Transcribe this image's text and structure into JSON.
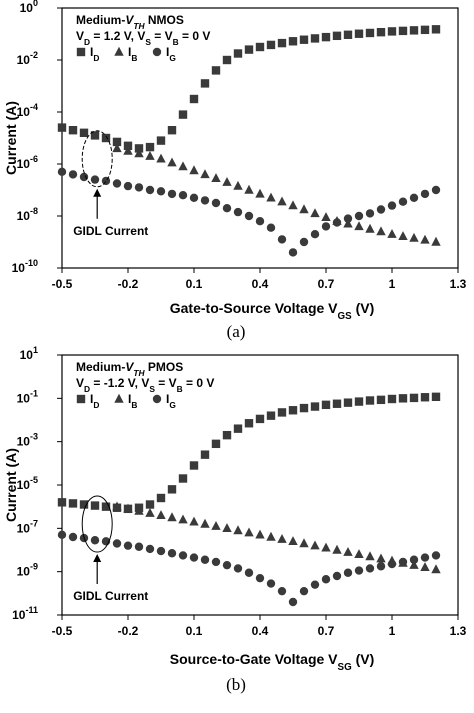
{
  "chart_data": [
    {
      "type": "scatter",
      "caption": "(a)",
      "title_parts": [
        "Medium-",
        "V",
        "TH",
        " NMOS"
      ],
      "conditions_parts": [
        "V",
        "D",
        " = 1.2 V, V",
        "S",
        " = V",
        "B",
        " = 0 V"
      ],
      "xlabel_parts": [
        "Gate-to-Source Voltage V",
        "GS",
        " (V)"
      ],
      "ylabel": "Current (A)",
      "x_ticks": [
        "-0.5",
        "-0.2",
        "0.1",
        "0.4",
        "0.7",
        "1",
        "1.3"
      ],
      "x_tick_values": [
        -0.5,
        -0.2,
        0.1,
        0.4,
        0.7,
        1.0,
        1.3
      ],
      "y_ticks": [
        {
          "base": "10",
          "exp": "0",
          "value": 0
        },
        {
          "base": "10",
          "exp": "-2",
          "value": -2
        },
        {
          "base": "10",
          "exp": "-4",
          "value": -4
        },
        {
          "base": "10",
          "exp": "-6",
          "value": -6
        },
        {
          "base": "10",
          "exp": "-8",
          "value": -8
        },
        {
          "base": "10",
          "exp": "-10",
          "value": -10
        }
      ],
      "xlim": [
        -0.5,
        1.3
      ],
      "ylim_log10": [
        -10,
        0
      ],
      "y_scale": "log",
      "legend_position": "top-left",
      "annotation": "GIDL Current",
      "annotation_target": {
        "x": -0.34,
        "y_log10": -5.8
      },
      "series": [
        {
          "name": "I",
          "sub": "D",
          "marker": "square",
          "x": [
            -0.5,
            -0.45,
            -0.4,
            -0.35,
            -0.3,
            -0.25,
            -0.2,
            -0.15,
            -0.1,
            -0.05,
            0.0,
            0.05,
            0.1,
            0.15,
            0.2,
            0.25,
            0.3,
            0.35,
            0.4,
            0.45,
            0.5,
            0.55,
            0.6,
            0.65,
            0.7,
            0.75,
            0.8,
            0.85,
            0.9,
            0.95,
            1.0,
            1.05,
            1.1,
            1.15,
            1.2
          ],
          "y_log10": [
            -4.6,
            -4.7,
            -4.8,
            -4.9,
            -5.0,
            -5.15,
            -5.3,
            -5.4,
            -5.35,
            -5.1,
            -4.7,
            -4.1,
            -3.5,
            -2.9,
            -2.4,
            -2.0,
            -1.75,
            -1.6,
            -1.5,
            -1.42,
            -1.35,
            -1.28,
            -1.22,
            -1.17,
            -1.12,
            -1.07,
            -1.03,
            -0.99,
            -0.96,
            -0.93,
            -0.9,
            -0.88,
            -0.86,
            -0.84,
            -0.82
          ]
        },
        {
          "name": "I",
          "sub": "B",
          "marker": "triangle",
          "x": [
            -0.25,
            -0.2,
            -0.15,
            -0.1,
            -0.05,
            0.0,
            0.05,
            0.1,
            0.15,
            0.2,
            0.25,
            0.3,
            0.35,
            0.4,
            0.45,
            0.5,
            0.55,
            0.6,
            0.65,
            0.7,
            0.75,
            0.8,
            0.85,
            0.9,
            0.95,
            1.0,
            1.05,
            1.1,
            1.15,
            1.2
          ],
          "y_log10": [
            -5.4,
            -5.5,
            -5.6,
            -5.7,
            -5.8,
            -5.95,
            -6.1,
            -6.25,
            -6.4,
            -6.55,
            -6.7,
            -6.85,
            -7.0,
            -7.15,
            -7.3,
            -7.45,
            -7.6,
            -7.75,
            -7.9,
            -8.05,
            -8.2,
            -8.3,
            -8.4,
            -8.5,
            -8.6,
            -8.7,
            -8.78,
            -8.85,
            -8.92,
            -9.0
          ]
        },
        {
          "name": "I",
          "sub": "G",
          "marker": "circle",
          "x": [
            -0.5,
            -0.45,
            -0.4,
            -0.35,
            -0.3,
            -0.25,
            -0.2,
            -0.15,
            -0.1,
            -0.05,
            0.0,
            0.05,
            0.1,
            0.15,
            0.2,
            0.25,
            0.3,
            0.35,
            0.4,
            0.45,
            0.5,
            0.55,
            0.6,
            0.65,
            0.7,
            0.75,
            0.8,
            0.85,
            0.9,
            0.95,
            1.0,
            1.05,
            1.1,
            1.15,
            1.2
          ],
          "y_log10": [
            -6.3,
            -6.4,
            -6.5,
            -6.6,
            -6.65,
            -6.75,
            -6.85,
            -6.9,
            -7.0,
            -7.05,
            -7.15,
            -7.2,
            -7.3,
            -7.4,
            -7.5,
            -7.7,
            -7.85,
            -8.0,
            -8.2,
            -8.45,
            -8.9,
            -9.4,
            -9.0,
            -8.7,
            -8.4,
            -8.25,
            -8.1,
            -8.0,
            -7.9,
            -7.75,
            -7.6,
            -7.45,
            -7.3,
            -7.15,
            -7.0
          ]
        }
      ]
    },
    {
      "type": "scatter",
      "caption": "(b)",
      "title_parts": [
        "Medium-",
        "V",
        "TH",
        " PMOS"
      ],
      "conditions_parts": [
        "V",
        "D",
        " = -1.2 V, V",
        "S",
        " = V",
        "B",
        " = 0 V"
      ],
      "xlabel_parts": [
        "Source-to-Gate Voltage V",
        "SG",
        " (V)"
      ],
      "ylabel": "Current (A)",
      "x_ticks": [
        "-0.5",
        "-0.2",
        "0.1",
        "0.4",
        "0.7",
        "1",
        "1.3"
      ],
      "x_tick_values": [
        -0.5,
        -0.2,
        0.1,
        0.4,
        0.7,
        1.0,
        1.3
      ],
      "y_ticks": [
        {
          "base": "10",
          "exp": "1",
          "value": 1
        },
        {
          "base": "10",
          "exp": "-1",
          "value": -1
        },
        {
          "base": "10",
          "exp": "-3",
          "value": -3
        },
        {
          "base": "10",
          "exp": "-5",
          "value": -5
        },
        {
          "base": "10",
          "exp": "-7",
          "value": -7
        },
        {
          "base": "10",
          "exp": "-9",
          "value": -9
        },
        {
          "base": "10",
          "exp": "-11",
          "value": -11
        }
      ],
      "xlim": [
        -0.5,
        1.3
      ],
      "ylim_log10": [
        -11,
        1
      ],
      "y_scale": "log",
      "legend_position": "top-left",
      "annotation": "GIDL Current",
      "annotation_target": {
        "x": -0.34,
        "y_log10": -6.8
      },
      "series": [
        {
          "name": "I",
          "sub": "D",
          "marker": "square",
          "x": [
            -0.5,
            -0.45,
            -0.4,
            -0.35,
            -0.3,
            -0.25,
            -0.2,
            -0.15,
            -0.1,
            -0.05,
            0.0,
            0.05,
            0.1,
            0.15,
            0.2,
            0.25,
            0.3,
            0.35,
            0.4,
            0.45,
            0.5,
            0.55,
            0.6,
            0.65,
            0.7,
            0.75,
            0.8,
            0.85,
            0.9,
            0.95,
            1.0,
            1.05,
            1.1,
            1.15,
            1.2
          ],
          "y_log10": [
            -5.8,
            -5.85,
            -5.9,
            -5.95,
            -6.0,
            -6.05,
            -6.1,
            -6.05,
            -5.9,
            -5.6,
            -5.2,
            -4.7,
            -4.1,
            -3.6,
            -3.1,
            -2.7,
            -2.4,
            -2.15,
            -1.95,
            -1.8,
            -1.65,
            -1.55,
            -1.45,
            -1.38,
            -1.3,
            -1.25,
            -1.2,
            -1.15,
            -1.1,
            -1.07,
            -1.03,
            -1.0,
            -0.98,
            -0.95,
            -0.93
          ]
        },
        {
          "name": "I",
          "sub": "B",
          "marker": "triangle",
          "x": [
            -0.25,
            -0.2,
            -0.15,
            -0.1,
            -0.05,
            0.0,
            0.05,
            0.1,
            0.15,
            0.2,
            0.25,
            0.3,
            0.35,
            0.4,
            0.45,
            0.5,
            0.55,
            0.6,
            0.65,
            0.7,
            0.75,
            0.8,
            0.85,
            0.9,
            0.95,
            1.0,
            1.05,
            1.1,
            1.15,
            1.2
          ],
          "y_log10": [
            -6.0,
            -6.1,
            -6.2,
            -6.3,
            -6.4,
            -6.5,
            -6.6,
            -6.7,
            -6.8,
            -6.9,
            -7.0,
            -7.1,
            -7.2,
            -7.3,
            -7.4,
            -7.5,
            -7.6,
            -7.7,
            -7.8,
            -7.9,
            -8.0,
            -8.1,
            -8.2,
            -8.3,
            -8.4,
            -8.5,
            -8.6,
            -8.7,
            -8.8,
            -8.9
          ]
        },
        {
          "name": "I",
          "sub": "G",
          "marker": "circle",
          "x": [
            -0.5,
            -0.45,
            -0.4,
            -0.35,
            -0.3,
            -0.25,
            -0.2,
            -0.15,
            -0.1,
            -0.05,
            0.0,
            0.05,
            0.1,
            0.15,
            0.2,
            0.25,
            0.3,
            0.35,
            0.4,
            0.45,
            0.5,
            0.55,
            0.6,
            0.65,
            0.7,
            0.75,
            0.8,
            0.85,
            0.9,
            0.95,
            1.0,
            1.05,
            1.1,
            1.15,
            1.2
          ],
          "y_log10": [
            -7.3,
            -7.4,
            -7.45,
            -7.55,
            -7.6,
            -7.7,
            -7.8,
            -7.85,
            -7.95,
            -8.05,
            -8.15,
            -8.25,
            -8.35,
            -8.45,
            -8.55,
            -8.7,
            -8.85,
            -9.05,
            -9.3,
            -9.55,
            -9.9,
            -10.4,
            -9.9,
            -9.6,
            -9.35,
            -9.2,
            -9.05,
            -8.95,
            -8.85,
            -8.75,
            -8.65,
            -8.55,
            -8.45,
            -8.35,
            -8.25
          ]
        }
      ]
    }
  ]
}
